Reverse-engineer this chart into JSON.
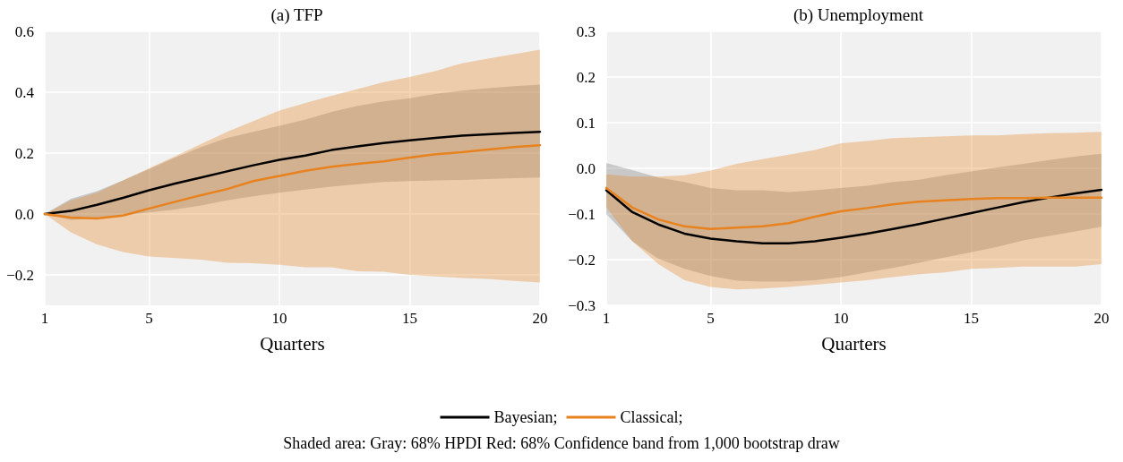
{
  "chart_data": [
    {
      "type": "line",
      "title": "(a) TFP",
      "xlabel": "Quarters",
      "x": [
        1,
        2,
        3,
        4,
        5,
        6,
        7,
        8,
        9,
        10,
        11,
        12,
        13,
        14,
        15,
        16,
        17,
        18,
        19,
        20
      ],
      "xlim": [
        1,
        20
      ],
      "xticks": [
        1,
        5,
        10,
        15,
        20
      ],
      "ylim": [
        -0.3,
        0.6
      ],
      "yticks": [
        {
          "value": -0.2,
          "label": "−0.2"
        },
        {
          "value": 0,
          "label": "0.0"
        },
        {
          "value": 0.2,
          "label": "0.2"
        },
        {
          "value": 0.4,
          "label": "0.4"
        },
        {
          "value": 0.6,
          "label": "0.6"
        }
      ],
      "grid": true,
      "legend": "bottom",
      "line_style": "solid",
      "series": [
        {
          "name": "Bayesian;",
          "color": "#000000",
          "values": [
            0,
            0.01,
            0.03,
            0.053,
            0.078,
            0.1,
            0.12,
            0.14,
            0.16,
            0.178,
            0.192,
            0.21,
            0.222,
            0.233,
            0.242,
            0.25,
            0.257,
            0.262,
            0.266,
            0.27
          ],
          "lower": [
            0,
            -0.02,
            -0.015,
            -0.005,
            0.005,
            0.015,
            0.028,
            0.045,
            0.058,
            0.07,
            0.08,
            0.09,
            0.098,
            0.105,
            0.108,
            0.11,
            0.112,
            0.115,
            0.118,
            0.12
          ],
          "upper": [
            0,
            0.05,
            0.075,
            0.11,
            0.148,
            0.185,
            0.22,
            0.25,
            0.27,
            0.29,
            0.31,
            0.335,
            0.355,
            0.37,
            0.38,
            0.395,
            0.405,
            0.413,
            0.42,
            0.425
          ]
        },
        {
          "name": "Classical;",
          "color": "#e8821e",
          "values": [
            0,
            -0.012,
            -0.015,
            -0.005,
            0.018,
            0.04,
            0.062,
            0.082,
            0.108,
            0.125,
            0.142,
            0.155,
            0.165,
            0.173,
            0.185,
            0.196,
            0.203,
            0.212,
            0.22,
            0.226
          ],
          "lower": [
            0,
            -0.06,
            -0.1,
            -0.125,
            -0.14,
            -0.145,
            -0.15,
            -0.16,
            -0.162,
            -0.167,
            -0.175,
            -0.175,
            -0.188,
            -0.19,
            -0.2,
            -0.205,
            -0.21,
            -0.213,
            -0.22,
            -0.225
          ],
          "upper": [
            0,
            0.045,
            0.07,
            0.11,
            0.15,
            0.19,
            0.23,
            0.27,
            0.305,
            0.34,
            0.365,
            0.388,
            0.41,
            0.433,
            0.45,
            0.47,
            0.495,
            0.51,
            0.525,
            0.54
          ]
        }
      ]
    },
    {
      "type": "line",
      "title": "(b) Unemployment",
      "xlabel": "Quarters",
      "x": [
        1,
        2,
        3,
        4,
        5,
        6,
        7,
        8,
        9,
        10,
        11,
        12,
        13,
        14,
        15,
        16,
        17,
        18,
        19,
        20
      ],
      "xlim": [
        1,
        20
      ],
      "xticks": [
        1,
        5,
        10,
        15,
        20
      ],
      "ylim": [
        -0.3,
        0.3
      ],
      "yticks": [
        {
          "value": -0.3,
          "label": "−0.3"
        },
        {
          "value": -0.2,
          "label": "−0.2"
        },
        {
          "value": -0.1,
          "label": "−0.1"
        },
        {
          "value": 0,
          "label": "0.0"
        },
        {
          "value": 0.1,
          "label": "0.1"
        },
        {
          "value": 0.2,
          "label": "0.2"
        },
        {
          "value": 0.3,
          "label": "0.3"
        }
      ],
      "grid": true,
      "legend": "bottom",
      "line_style": "solid",
      "annotations": [
        "Shaded area: Gray: 68% HPDI Red: 68% Confidence band from 1,000 bootstrap draw"
      ],
      "series": [
        {
          "name": "Bayesian;",
          "color": "#000000",
          "values": [
            -0.048,
            -0.096,
            -0.123,
            -0.143,
            -0.154,
            -0.16,
            -0.164,
            -0.164,
            -0.16,
            -0.152,
            -0.143,
            -0.133,
            -0.122,
            -0.11,
            -0.098,
            -0.086,
            -0.074,
            -0.064,
            -0.055,
            -0.047
          ],
          "lower": [
            -0.1,
            -0.16,
            -0.198,
            -0.22,
            -0.236,
            -0.246,
            -0.248,
            -0.248,
            -0.245,
            -0.238,
            -0.228,
            -0.218,
            -0.207,
            -0.195,
            -0.184,
            -0.172,
            -0.158,
            -0.148,
            -0.138,
            -0.128
          ],
          "upper": [
            0.012,
            -0.004,
            -0.02,
            -0.03,
            -0.043,
            -0.048,
            -0.048,
            -0.052,
            -0.048,
            -0.043,
            -0.038,
            -0.03,
            -0.025,
            -0.015,
            -0.007,
            0.002,
            0.01,
            0.018,
            0.026,
            0.032
          ]
        },
        {
          "name": "Classical;",
          "color": "#e8821e",
          "values": [
            -0.043,
            -0.086,
            -0.112,
            -0.127,
            -0.133,
            -0.13,
            -0.127,
            -0.12,
            -0.106,
            -0.094,
            -0.087,
            -0.079,
            -0.073,
            -0.07,
            -0.067,
            -0.065,
            -0.065,
            -0.064,
            -0.064,
            -0.064
          ],
          "lower": [
            -0.085,
            -0.16,
            -0.21,
            -0.245,
            -0.26,
            -0.265,
            -0.263,
            -0.26,
            -0.255,
            -0.25,
            -0.245,
            -0.238,
            -0.232,
            -0.228,
            -0.22,
            -0.218,
            -0.215,
            -0.215,
            -0.215,
            -0.21
          ],
          "upper": [
            -0.013,
            -0.018,
            -0.018,
            -0.015,
            -0.005,
            0.01,
            0.02,
            0.03,
            0.04,
            0.055,
            0.06,
            0.066,
            0.068,
            0.07,
            0.072,
            0.072,
            0.075,
            0.077,
            0.078,
            0.08
          ]
        }
      ]
    }
  ]
}
